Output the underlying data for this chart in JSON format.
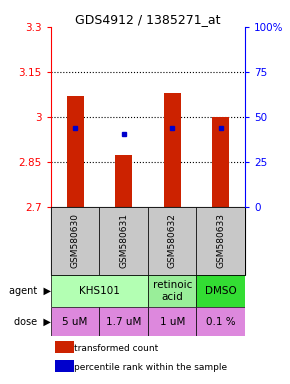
{
  "title": "GDS4912 / 1385271_at",
  "samples": [
    "GSM580630",
    "GSM580631",
    "GSM580632",
    "GSM580633"
  ],
  "bar_values": [
    3.07,
    2.875,
    3.08,
    3.0
  ],
  "bar_bottoms": [
    2.7,
    2.7,
    2.7,
    2.7
  ],
  "percentile_values": [
    2.965,
    2.945,
    2.965,
    2.965
  ],
  "ylim": [
    2.7,
    3.3
  ],
  "yticks_left": [
    2.7,
    2.85,
    3.0,
    3.15,
    3.3
  ],
  "yticks_right": [
    0,
    25,
    50,
    75,
    100
  ],
  "ytick_labels_left": [
    "2.7",
    "2.85",
    "3",
    "3.15",
    "3.3"
  ],
  "ytick_labels_right": [
    "0",
    "25",
    "50",
    "75",
    "100%"
  ],
  "bar_color": "#cc2200",
  "percentile_color": "#0000cc",
  "agent_spans": [
    [
      0,
      2,
      "KHS101",
      "#b3ffb3"
    ],
    [
      2,
      3,
      "retinoic\nacid",
      "#99ee99"
    ],
    [
      3,
      4,
      "DMSO",
      "#33dd33"
    ]
  ],
  "dose_labels": [
    "5 uM",
    "1.7 uM",
    "1 uM",
    "0.1 %"
  ],
  "dose_color": "#dd88dd",
  "sample_bg_color": "#c8c8c8",
  "legend_red": "transformed count",
  "legend_blue": "percentile rank within the sample",
  "gridline_values": [
    2.85,
    3.0,
    3.15
  ]
}
